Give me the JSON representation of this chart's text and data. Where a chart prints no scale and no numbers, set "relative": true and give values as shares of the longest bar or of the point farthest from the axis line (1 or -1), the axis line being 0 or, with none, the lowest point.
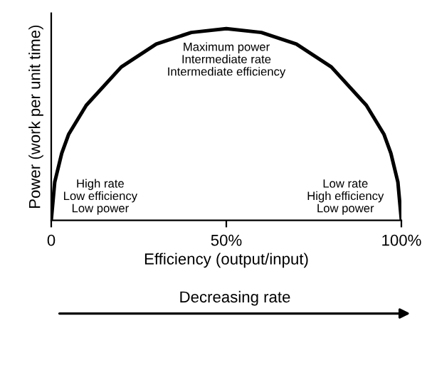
{
  "chart_data": {
    "type": "line",
    "relative": true,
    "xlabel": "Efficiency (output/input)",
    "ylabel": "Power (work per unit time)",
    "x": [
      0,
      1,
      3,
      5,
      10,
      20,
      30,
      40,
      50,
      60,
      70,
      80,
      90,
      95,
      97,
      99,
      100
    ],
    "series": [
      {
        "color": "#000000",
        "values": [
          0,
          0.2,
          0.35,
          0.45,
          0.6,
          0.8,
          0.92,
          0.98,
          1,
          0.98,
          0.92,
          0.8,
          0.6,
          0.45,
          0.35,
          0.2,
          0
        ]
      }
    ],
    "xlim": [
      0,
      100
    ],
    "xticks": [
      0,
      {
        "value": 50,
        "label": "50%"
      },
      {
        "value": 100,
        "label": "100%"
      }
    ],
    "grid": false,
    "legend": false,
    "marker": "none",
    "line_style": "solid",
    "annotations": [
      "Maximum power\nIntermediate rate\nIntermediate efficiency",
      "High rate\nLow efficiency\nLow power",
      "Low rate\nHigh efficiency\nLow power",
      "Decreasing rate"
    ]
  }
}
